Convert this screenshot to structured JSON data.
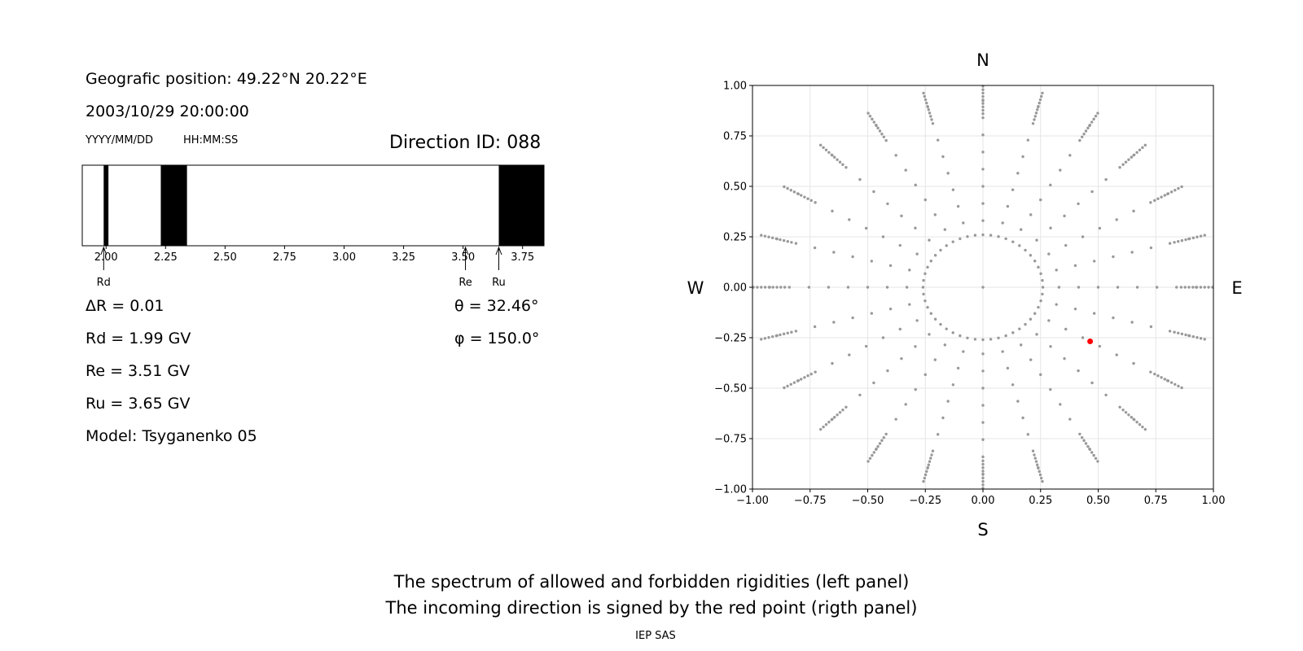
{
  "header": {
    "position": "Geografic position: 49.22°N 20.22°E",
    "datetime": "2003/10/29 20:00:00",
    "date_format": "YYYY/MM/DD",
    "time_format": "HH:MM:SS",
    "direction_id": "Direction ID: 088"
  },
  "spectrum": {
    "xlim": [
      1.9,
      3.84
    ],
    "ticks": [
      "2.00",
      "2.25",
      "2.50",
      "2.75",
      "3.00",
      "3.25",
      "3.50",
      "3.75"
    ],
    "tick_values": [
      2.0,
      2.25,
      2.5,
      2.75,
      3.0,
      3.25,
      3.5,
      3.75
    ],
    "forbidden_bands": [
      [
        1.99,
        2.01
      ],
      [
        2.23,
        2.34
      ],
      [
        3.65,
        3.84
      ]
    ],
    "markers": [
      {
        "label": "Rd",
        "value": 1.99
      },
      {
        "label": "Re",
        "value": 3.51
      },
      {
        "label": "Ru",
        "value": 3.65
      }
    ]
  },
  "stats": {
    "delta_r": "ΔR = 0.01",
    "rd": "Rd = 1.99 GV",
    "re": "Re = 3.51 GV",
    "ru": "Ru = 3.65 GV",
    "model": "Model: Tsyganenko 05",
    "theta": "θ = 32.46°",
    "phi": "φ = 150.0°"
  },
  "compass": {
    "n": "N",
    "s": "S",
    "w": "W",
    "e": "E"
  },
  "chart_data": {
    "type": "scatter",
    "xlim": [
      -1.0,
      1.0
    ],
    "ylim": [
      -1.0,
      1.0
    ],
    "xticks": [
      "−1.00",
      "−0.75",
      "−0.50",
      "−0.25",
      "0.00",
      "0.25",
      "0.50",
      "0.75",
      "1.00"
    ],
    "yticks": [
      "1.00",
      "0.75",
      "0.50",
      "0.25",
      "0.00",
      "−0.25",
      "−0.50",
      "−0.75",
      "−1.00"
    ],
    "tick_values": [
      -1.0,
      -0.75,
      -0.5,
      -0.25,
      0.0,
      0.25,
      0.5,
      0.75,
      1.0
    ],
    "grid": true,
    "grid_directions": {
      "azimuth_step_deg": 15,
      "zenith_rings_deg": [
        15,
        25,
        35,
        45,
        55,
        65,
        75,
        85
      ],
      "rings_radius": [
        0.26,
        0.42,
        0.57,
        0.71,
        0.82,
        0.91,
        0.97,
        0.995
      ],
      "color": "#999999"
    },
    "point": {
      "x": 0.465,
      "y": -0.268,
      "color": "#ff0000"
    }
  },
  "footer": {
    "line1": "The spectrum of allowed and forbidden rigidities (left panel)",
    "line2": "The incoming direction is signed by the red point (rigth panel)",
    "credit": "IEP SAS"
  }
}
